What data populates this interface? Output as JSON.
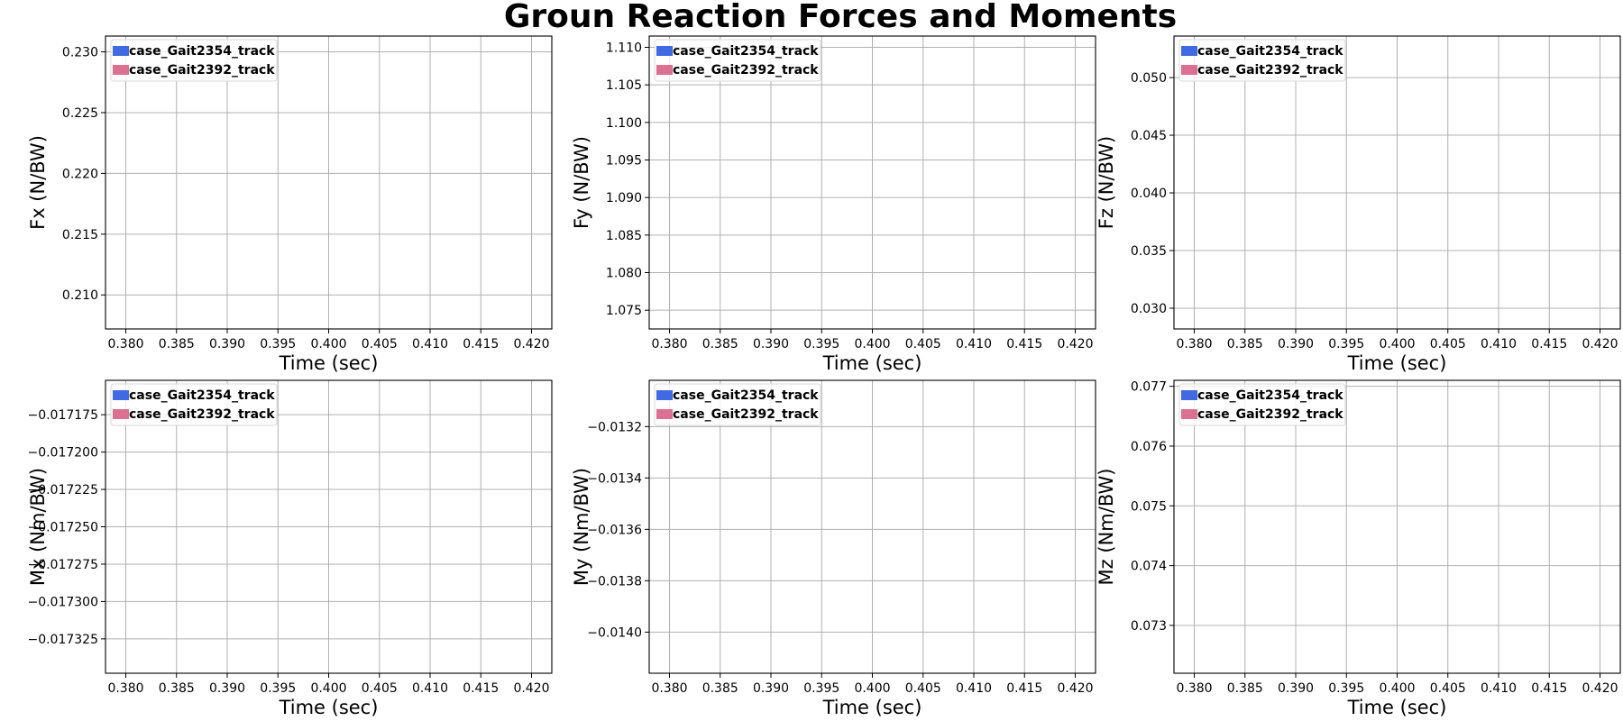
{
  "figure": {
    "title": "Groun Reaction Forces and Moments"
  },
  "chart_data": [
    {
      "type": "line",
      "xlabel": "Time (sec)",
      "ylabel": "Fx (N/BW)",
      "xlim": [
        0.378,
        0.422
      ],
      "ylim": [
        0.2072,
        0.2313
      ],
      "xticks": [
        0.38,
        0.385,
        0.39,
        0.395,
        0.4,
        0.405,
        0.41,
        0.415,
        0.42
      ],
      "xtick_labels": [
        "0.380",
        "0.385",
        "0.390",
        "0.395",
        "0.400",
        "0.405",
        "0.410",
        "0.415",
        "0.420"
      ],
      "yticks": [
        0.21,
        0.215,
        0.22,
        0.225,
        0.23
      ],
      "ytick_labels": [
        "0.210",
        "0.215",
        "0.220",
        "0.225",
        "0.230"
      ],
      "grid": true,
      "legend_position": "top-left",
      "series": [
        {
          "name": "case_Gait2354_track",
          "color": "#4169e1",
          "x": [],
          "y": []
        },
        {
          "name": "case_Gait2392_track",
          "color": "#db7093",
          "x": [],
          "y": []
        }
      ]
    },
    {
      "type": "line",
      "xlabel": "Time (sec)",
      "ylabel": "Fy (N/BW)",
      "xlim": [
        0.378,
        0.422
      ],
      "ylim": [
        1.0725,
        1.1115
      ],
      "xticks": [
        0.38,
        0.385,
        0.39,
        0.395,
        0.4,
        0.405,
        0.41,
        0.415,
        0.42
      ],
      "xtick_labels": [
        "0.380",
        "0.385",
        "0.390",
        "0.395",
        "0.400",
        "0.405",
        "0.410",
        "0.415",
        "0.420"
      ],
      "yticks": [
        1.075,
        1.08,
        1.085,
        1.09,
        1.095,
        1.1,
        1.105,
        1.11
      ],
      "ytick_labels": [
        "1.075",
        "1.080",
        "1.085",
        "1.090",
        "1.095",
        "1.100",
        "1.105",
        "1.110"
      ],
      "grid": true,
      "legend_position": "top-left",
      "series": [
        {
          "name": "case_Gait2354_track",
          "color": "#4169e1",
          "x": [],
          "y": []
        },
        {
          "name": "case_Gait2392_track",
          "color": "#db7093",
          "x": [],
          "y": []
        }
      ]
    },
    {
      "type": "line",
      "xlabel": "Time (sec)",
      "ylabel": "Fz (N/BW)",
      "xlim": [
        0.378,
        0.422
      ],
      "ylim": [
        0.0282,
        0.0536
      ],
      "xticks": [
        0.38,
        0.385,
        0.39,
        0.395,
        0.4,
        0.405,
        0.41,
        0.415,
        0.42
      ],
      "xtick_labels": [
        "0.380",
        "0.385",
        "0.390",
        "0.395",
        "0.400",
        "0.405",
        "0.410",
        "0.415",
        "0.420"
      ],
      "yticks": [
        0.03,
        0.035,
        0.04,
        0.045,
        0.05
      ],
      "ytick_labels": [
        "0.030",
        "0.035",
        "0.040",
        "0.045",
        "0.050"
      ],
      "grid": true,
      "legend_position": "top-left",
      "series": [
        {
          "name": "case_Gait2354_track",
          "color": "#4169e1",
          "x": [],
          "y": []
        },
        {
          "name": "case_Gait2392_track",
          "color": "#db7093",
          "x": [],
          "y": []
        }
      ]
    },
    {
      "type": "line",
      "xlabel": "Time (sec)",
      "ylabel": "Mx (Nm/BW)",
      "xlim": [
        0.378,
        0.422
      ],
      "ylim": [
        -0.017348,
        -0.017152
      ],
      "xticks": [
        0.38,
        0.385,
        0.39,
        0.395,
        0.4,
        0.405,
        0.41,
        0.415,
        0.42
      ],
      "xtick_labels": [
        "0.380",
        "0.385",
        "0.390",
        "0.395",
        "0.400",
        "0.405",
        "0.410",
        "0.415",
        "0.420"
      ],
      "yticks": [
        -0.017325,
        -0.0173,
        -0.017275,
        -0.01725,
        -0.017225,
        -0.0172,
        -0.017175
      ],
      "ytick_labels": [
        "−0.017325",
        "−0.017300",
        "−0.017275",
        "−0.017250",
        "−0.017225",
        "−0.017200",
        "−0.017175"
      ],
      "grid": true,
      "legend_position": "top-left",
      "series": [
        {
          "name": "case_Gait2354_track",
          "color": "#4169e1",
          "x": [],
          "y": []
        },
        {
          "name": "case_Gait2392_track",
          "color": "#db7093",
          "x": [],
          "y": []
        }
      ]
    },
    {
      "type": "line",
      "xlabel": "Time (sec)",
      "ylabel": "My (Nm/BW)",
      "xlim": [
        0.378,
        0.422
      ],
      "ylim": [
        -0.01416,
        -0.01302
      ],
      "xticks": [
        0.38,
        0.385,
        0.39,
        0.395,
        0.4,
        0.405,
        0.41,
        0.415,
        0.42
      ],
      "xtick_labels": [
        "0.380",
        "0.385",
        "0.390",
        "0.395",
        "0.400",
        "0.405",
        "0.410",
        "0.415",
        "0.420"
      ],
      "yticks": [
        -0.014,
        -0.0138,
        -0.0136,
        -0.0134,
        -0.0132
      ],
      "ytick_labels": [
        "−0.0140",
        "−0.0138",
        "−0.0136",
        "−0.0134",
        "−0.0132"
      ],
      "grid": true,
      "legend_position": "top-left",
      "series": [
        {
          "name": "case_Gait2354_track",
          "color": "#4169e1",
          "x": [],
          "y": []
        },
        {
          "name": "case_Gait2392_track",
          "color": "#db7093",
          "x": [],
          "y": []
        }
      ]
    },
    {
      "type": "line",
      "xlabel": "Time (sec)",
      "ylabel": "Mz (Nm/BW)",
      "xlim": [
        0.378,
        0.422
      ],
      "ylim": [
        0.0722,
        0.0771
      ],
      "xticks": [
        0.38,
        0.385,
        0.39,
        0.395,
        0.4,
        0.405,
        0.41,
        0.415,
        0.42
      ],
      "xtick_labels": [
        "0.380",
        "0.385",
        "0.390",
        "0.395",
        "0.400",
        "0.405",
        "0.410",
        "0.415",
        "0.420"
      ],
      "yticks": [
        0.073,
        0.074,
        0.075,
        0.076,
        0.077
      ],
      "ytick_labels": [
        "0.073",
        "0.074",
        "0.075",
        "0.076",
        "0.077"
      ],
      "grid": true,
      "legend_position": "top-left",
      "series": [
        {
          "name": "case_Gait2354_track",
          "color": "#4169e1",
          "x": [],
          "y": []
        },
        {
          "name": "case_Gait2392_track",
          "color": "#db7093",
          "x": [],
          "y": []
        }
      ]
    }
  ]
}
